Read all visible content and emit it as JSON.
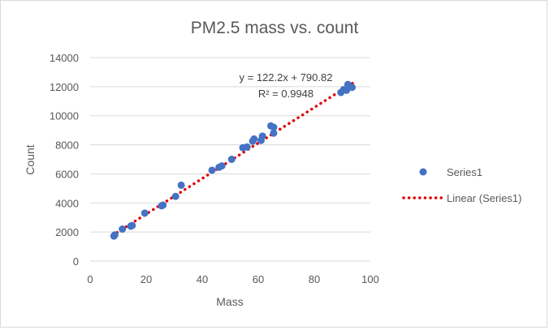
{
  "chart_data": {
    "type": "scatter",
    "title": "PM2.5 mass vs. count",
    "xlabel": "Mass",
    "ylabel": "Count",
    "xlim": [
      0,
      100
    ],
    "ylim": [
      0,
      14000
    ],
    "x_ticks": [
      0,
      20,
      40,
      60,
      80,
      100
    ],
    "y_ticks": [
      0,
      2000,
      4000,
      6000,
      8000,
      10000,
      12000,
      14000
    ],
    "x_tick_labels": [
      "0",
      "20",
      "40",
      "60",
      "80",
      "100"
    ],
    "y_tick_labels": [
      "0",
      "2000",
      "4000",
      "6000",
      "8000",
      "10000",
      "12000",
      "14000"
    ],
    "grid": "horizontal",
    "legend_position": "right",
    "series": [
      {
        "name": "Series1",
        "color": "#4472C4",
        "points": [
          {
            "x": 8.5,
            "y": 1720
          },
          {
            "x": 8.8,
            "y": 1800
          },
          {
            "x": 11.5,
            "y": 2200
          },
          {
            "x": 14.5,
            "y": 2400
          },
          {
            "x": 15.0,
            "y": 2450
          },
          {
            "x": 19.5,
            "y": 3300
          },
          {
            "x": 25.5,
            "y": 3800
          },
          {
            "x": 26.0,
            "y": 3850
          },
          {
            "x": 30.5,
            "y": 4450
          },
          {
            "x": 32.5,
            "y": 5220
          },
          {
            "x": 43.5,
            "y": 6250
          },
          {
            "x": 46.0,
            "y": 6450
          },
          {
            "x": 47.0,
            "y": 6550
          },
          {
            "x": 50.5,
            "y": 7000
          },
          {
            "x": 54.5,
            "y": 7800
          },
          {
            "x": 56.0,
            "y": 7850
          },
          {
            "x": 58.0,
            "y": 8250
          },
          {
            "x": 58.5,
            "y": 8400
          },
          {
            "x": 61.0,
            "y": 8300
          },
          {
            "x": 61.5,
            "y": 8600
          },
          {
            "x": 64.5,
            "y": 9300
          },
          {
            "x": 65.5,
            "y": 9200
          },
          {
            "x": 65.5,
            "y": 8800
          },
          {
            "x": 89.5,
            "y": 11600
          },
          {
            "x": 90.5,
            "y": 11800
          },
          {
            "x": 91.5,
            "y": 11750
          },
          {
            "x": 92.0,
            "y": 12150
          },
          {
            "x": 93.5,
            "y": 11950
          }
        ]
      }
    ],
    "trendline": {
      "name": "Linear (Series1)",
      "color": "#E00000",
      "style": "dotted",
      "slope": 122.2,
      "intercept": 790.82,
      "x_range": [
        8,
        94
      ],
      "equation_label": "y = 122.2x + 790.82",
      "r2_label": "R² = 0.9948"
    },
    "legend": [
      {
        "label": "Series1",
        "marker": "circle"
      },
      {
        "label": "Linear (Series1)",
        "marker": "dotted-line"
      }
    ]
  }
}
